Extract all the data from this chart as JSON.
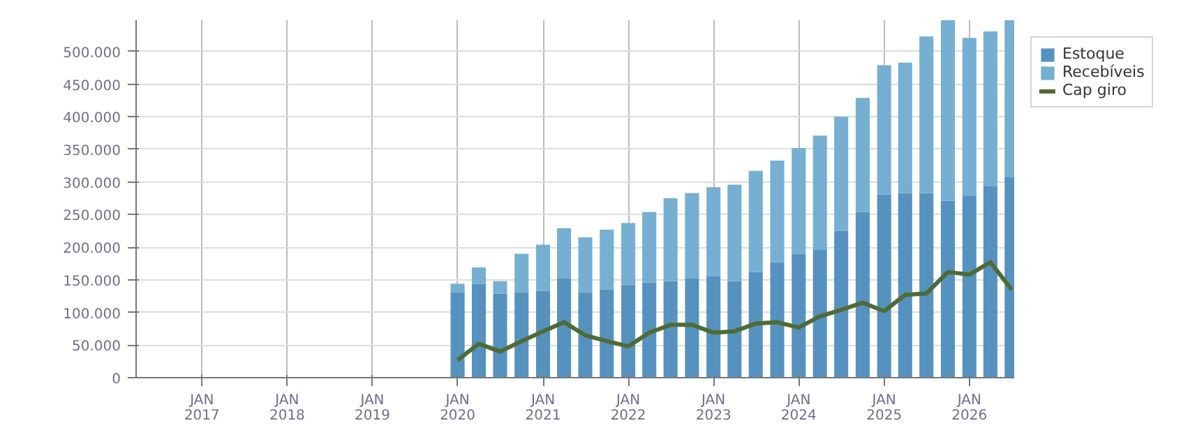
{
  "chart_data": {
    "type": "bar",
    "stacked": true,
    "x": [
      "2020-01",
      "2020-04",
      "2020-07",
      "2020-10",
      "2021-01",
      "2021-04",
      "2021-07",
      "2021-10",
      "2022-01",
      "2022-04",
      "2022-07",
      "2022-10",
      "2023-01",
      "2023-04",
      "2023-07",
      "2023-10",
      "2024-01",
      "2024-04",
      "2024-07",
      "2024-10",
      "2025-01",
      "2025-04",
      "2025-07",
      "2025-10",
      "2026-01",
      "2026-04",
      "2026-07"
    ],
    "series": [
      {
        "name": "Estoque",
        "color": "#5592bf",
        "values": [
          131000,
          144000,
          129000,
          131000,
          133000,
          152000,
          131000,
          135000,
          142000,
          146000,
          148000,
          152000,
          156000,
          148000,
          162000,
          177000,
          190000,
          196000,
          225000,
          254000,
          281000,
          283000,
          283000,
          271000,
          279000,
          294000,
          308000
        ]
      },
      {
        "name": "Recebíveis",
        "color": "#75afd2",
        "values": [
          13000,
          25000,
          19000,
          59000,
          71000,
          77000,
          84000,
          92000,
          95000,
          108000,
          127000,
          131000,
          136000,
          148000,
          155000,
          156000,
          162000,
          175000,
          175000,
          175000,
          198000,
          200000,
          240000,
          277000,
          242000,
          237000,
          240000
        ]
      },
      {
        "name": "Cap giro",
        "type": "line",
        "color": "#4f6b35",
        "values": [
          27000,
          52000,
          40000,
          56000,
          71000,
          85000,
          65000,
          56000,
          48000,
          69000,
          81000,
          81000,
          69000,
          71000,
          83000,
          85000,
          77000,
          94000,
          104000,
          115000,
          102000,
          127000,
          129000,
          162000,
          158000,
          177000,
          135000
        ]
      }
    ],
    "xlim": [
      "2016-03-25",
      "2026-07-12"
    ],
    "xticks": [
      {
        "value": "2017-01",
        "label": "JAN\n2017"
      },
      {
        "value": "2018-01",
        "label": "JAN\n2018"
      },
      {
        "value": "2019-01",
        "label": "JAN\n2019"
      },
      {
        "value": "2020-01",
        "label": "JAN\n2020"
      },
      {
        "value": "2021-01",
        "label": "JAN\n2021"
      },
      {
        "value": "2022-01",
        "label": "JAN\n2022"
      },
      {
        "value": "2023-01",
        "label": "JAN\n2023"
      },
      {
        "value": "2024-01",
        "label": "JAN\n2024"
      },
      {
        "value": "2025-01",
        "label": "JAN\n2025"
      },
      {
        "value": "2026-01",
        "label": "JAN\n2026"
      }
    ],
    "ylim": [
      0,
      548000
    ],
    "yticks": [
      0,
      {
        "value": 50000,
        "label": "50.000"
      },
      {
        "value": 100000,
        "label": "100.000"
      },
      {
        "value": 150000,
        "label": "150.000"
      },
      {
        "value": 200000,
        "label": "200.000"
      },
      {
        "value": 250000,
        "label": "250.000"
      },
      {
        "value": 300000,
        "label": "300.000"
      },
      {
        "value": 350000,
        "label": "350.000"
      },
      {
        "value": 400000,
        "label": "400.000"
      },
      {
        "value": 450000,
        "label": "450.000"
      },
      {
        "value": 500000,
        "label": "500.000"
      }
    ],
    "grid": true,
    "legend": "top right"
  }
}
